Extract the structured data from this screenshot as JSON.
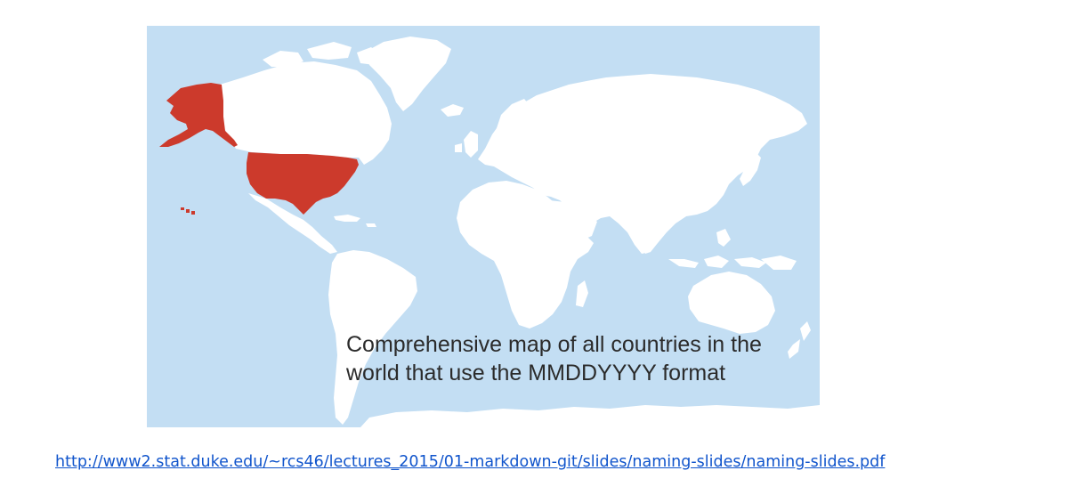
{
  "map": {
    "caption_line1": "Comprehensive map of all countries in the",
    "caption_line2": "world that use the MMDDYYYY format",
    "highlighted_regions": [
      "United States",
      "Alaska",
      "Hawaii"
    ],
    "colors": {
      "ocean": "#c3def3",
      "land": "#ffffff",
      "highlight": "#cc3a2c"
    }
  },
  "source": {
    "url": "http://www2.stat.duke.edu/~rcs46/lectures_2015/01-markdown-git/slides/naming-slides/naming-slides.pdf"
  }
}
